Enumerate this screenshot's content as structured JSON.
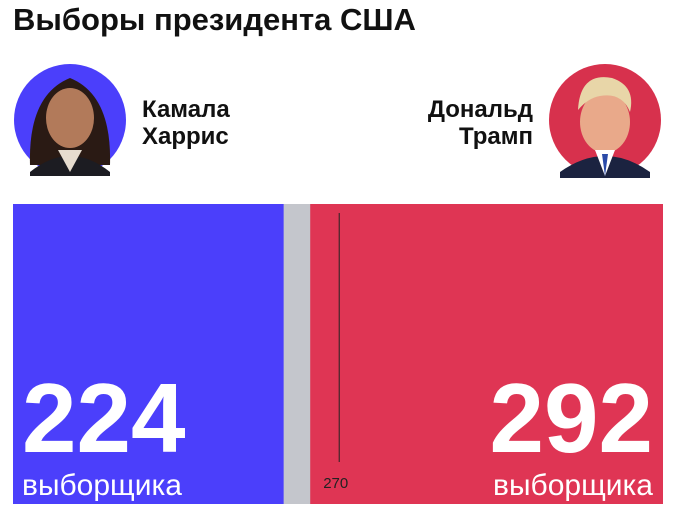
{
  "chart_data": {
    "type": "stacked-bar",
    "title": "Выборы президента США",
    "xlim": [
      0,
      538
    ],
    "threshold": 270,
    "track_color": "#c4c6cc",
    "unit_label": "выборщика",
    "series": [
      {
        "name": "Камала Харрис",
        "color": "#4b3ffb",
        "values": [
          224
        ],
        "anchor": "start"
      },
      {
        "name": "Дональд Трамп",
        "color": "#df3554",
        "values": [
          292
        ],
        "anchor": "end"
      }
    ]
  }
}
